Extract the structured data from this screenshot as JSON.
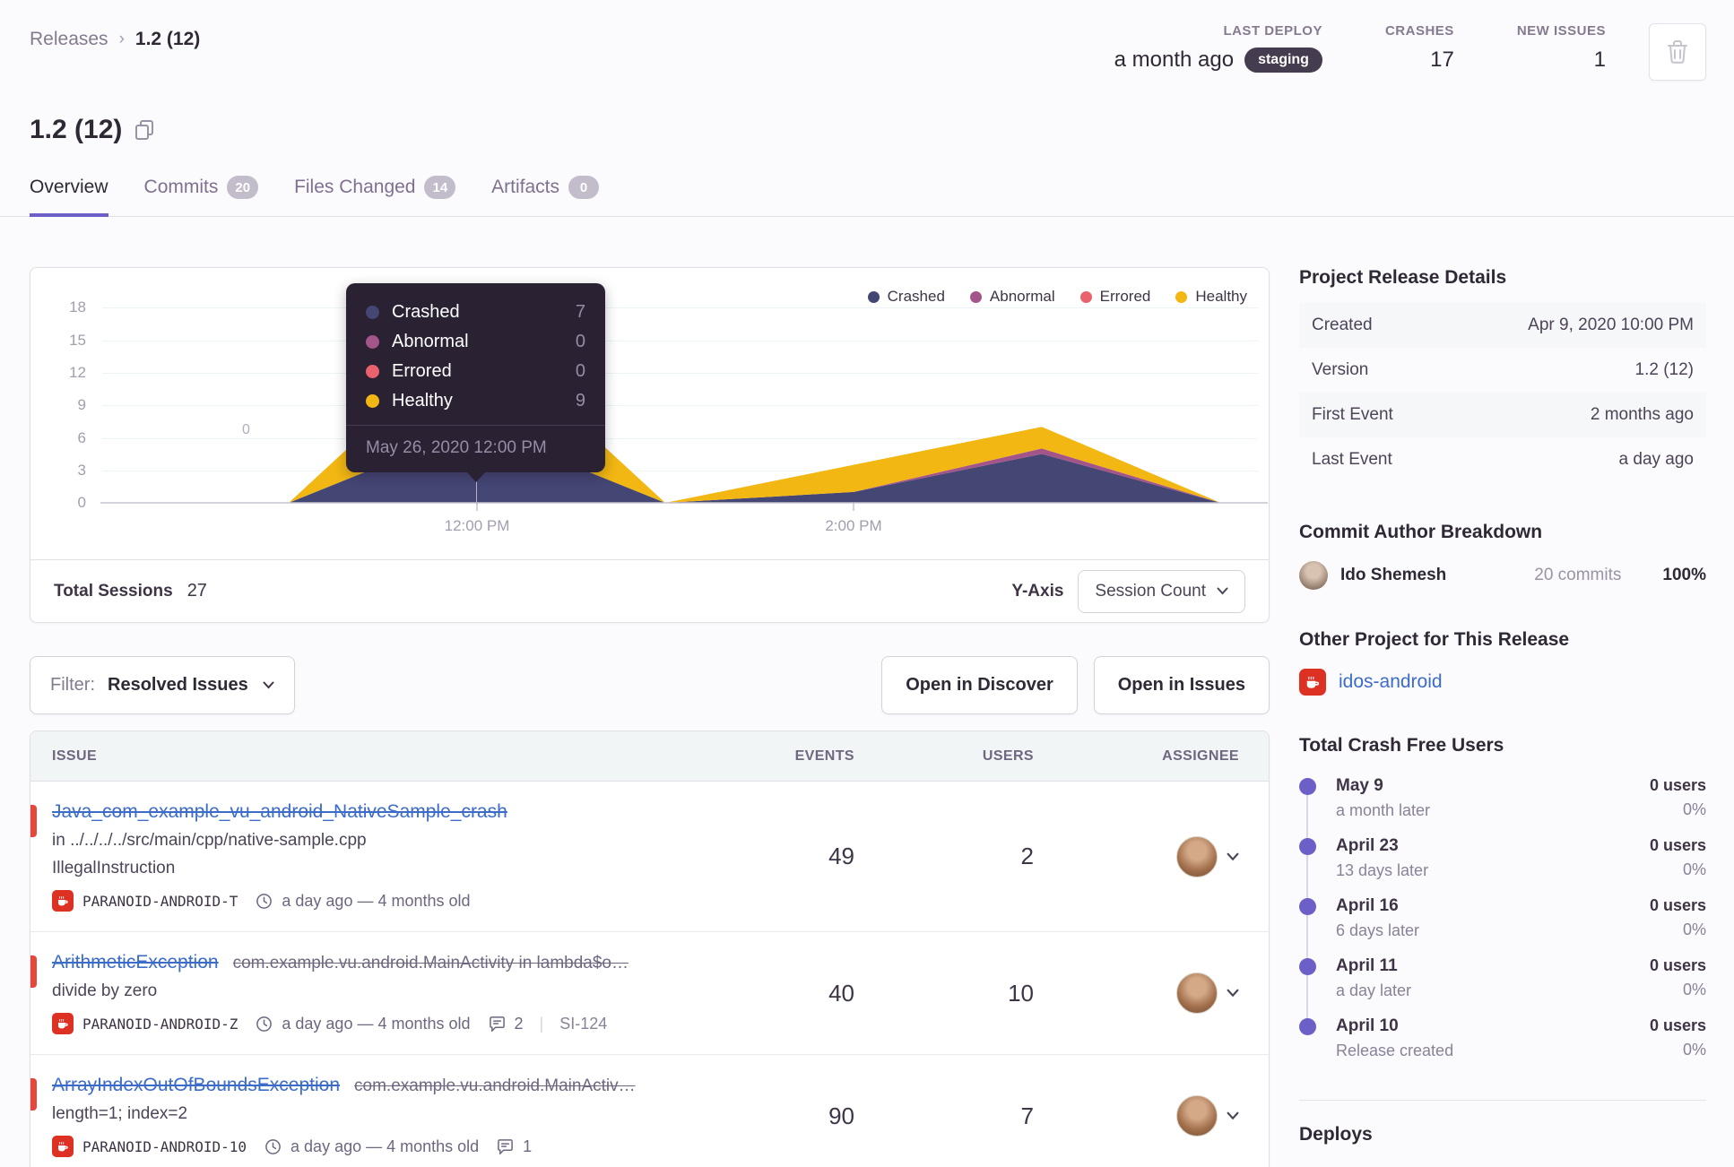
{
  "header": {
    "breadcrumb": {
      "section": "Releases",
      "current": "1.2 (12)"
    },
    "stats": [
      {
        "label": "LAST DEPLOY",
        "value": "a month ago",
        "badge": "staging"
      },
      {
        "label": "CRASHES",
        "value": "17"
      },
      {
        "label": "NEW ISSUES",
        "value": "1"
      }
    ],
    "title": "1.2 (12)"
  },
  "tabs": [
    {
      "label": "Overview"
    },
    {
      "label": "Commits",
      "count": "20"
    },
    {
      "label": "Files Changed",
      "count": "14"
    },
    {
      "label": "Artifacts",
      "count": "0"
    }
  ],
  "chart_data": {
    "type": "area",
    "stacked": true,
    "x_unit": "hours (24h clock, May 26 2020)",
    "x": [
      10,
      11,
      12,
      13,
      14,
      15,
      15.95
    ],
    "x_tick_labels": [
      "12:00 PM",
      "2:00 PM"
    ],
    "x_tick_hours": [
      12,
      14
    ],
    "y_tick_labels": [
      "18",
      "15",
      "12",
      "9",
      "6",
      "3",
      "0"
    ],
    "ylim": [
      0,
      18
    ],
    "series": [
      {
        "name": "Crashed",
        "color": "#444674",
        "values": [
          0,
          0,
          7,
          0,
          1,
          4.5,
          0
        ]
      },
      {
        "name": "Abnormal",
        "color": "#A35488",
        "values": [
          0,
          0,
          0,
          0,
          0,
          0.5,
          0
        ]
      },
      {
        "name": "Errored",
        "color": "#E9626E",
        "values": [
          0,
          0,
          0,
          0,
          0,
          0,
          0
        ]
      },
      {
        "name": "Healthy",
        "color": "#F2B712",
        "values": [
          0,
          0,
          9,
          0,
          2.5,
          2,
          0
        ]
      }
    ],
    "legend_position": "top-right",
    "stray_point_label": "0"
  },
  "tooltip": {
    "rows": [
      {
        "label": "Crashed",
        "value": "7",
        "color": "#444674"
      },
      {
        "label": "Abnormal",
        "value": "0",
        "color": "#A35488"
      },
      {
        "label": "Errored",
        "value": "0",
        "color": "#E9626E"
      },
      {
        "label": "Healthy",
        "value": "9",
        "color": "#F2B712"
      }
    ],
    "date": "May 26, 2020 12:00 PM"
  },
  "chart_footer": {
    "total_sessions_label": "Total Sessions",
    "total_sessions_value": "27",
    "yaxis_label": "Y-Axis",
    "yaxis_value": "Session Count"
  },
  "filter_bar": {
    "filter_label": "Filter:",
    "filter_value": "Resolved Issues",
    "discover_button": "Open in Discover",
    "issues_button": "Open in Issues"
  },
  "issues_table": {
    "columns": {
      "issue": "ISSUE",
      "events": "EVENTS",
      "users": "USERS",
      "assignee": "ASSIGNEE"
    },
    "rows": [
      {
        "title": "Java_com_example_vu_android_NativeSample_crash",
        "culprit": null,
        "line2": "in ../../../../src/main/cpp/native-sample.cpp",
        "line3": "IllegalInstruction",
        "project": "PARANOID-ANDROID-T",
        "age": "a day ago — 4 months old",
        "comments": null,
        "ref": null,
        "events": "49",
        "users": "2"
      },
      {
        "title": "ArithmeticException",
        "culprit": "com.example.vu.android.MainActivity in lambda$o…",
        "line2": "divide by zero",
        "line3": null,
        "project": "PARANOID-ANDROID-Z",
        "age": "a day ago — 4 months old",
        "comments": "2",
        "ref": "SI-124",
        "events": "40",
        "users": "10"
      },
      {
        "title": "ArrayIndexOutOfBoundsException",
        "culprit": "com.example.vu.android.MainActiv…",
        "line2": "length=1; index=2",
        "line3": null,
        "project": "PARANOID-ANDROID-10",
        "age": "a day ago — 4 months old",
        "comments": "1",
        "ref": null,
        "events": "90",
        "users": "7"
      }
    ]
  },
  "sidebar": {
    "details": {
      "heading": "Project Release Details",
      "rows": [
        {
          "label": "Created",
          "value": "Apr 9, 2020 10:00 PM"
        },
        {
          "label": "Version",
          "value": "1.2 (12)"
        },
        {
          "label": "First Event",
          "value": "2 months ago"
        },
        {
          "label": "Last Event",
          "value": "a day ago"
        }
      ]
    },
    "commit_breakdown": {
      "heading": "Commit Author Breakdown",
      "author": {
        "name": "Ido Shemesh",
        "commits": "20 commits",
        "percent": "100%"
      }
    },
    "other_project": {
      "heading": "Other Project for This Release",
      "link": "idos-android"
    },
    "crash_free": {
      "heading": "Total Crash Free Users",
      "items": [
        {
          "date": "May 9",
          "sub": "a month later",
          "users": "0 users",
          "percent": "0%"
        },
        {
          "date": "April 23",
          "sub": "13 days later",
          "users": "0 users",
          "percent": "0%"
        },
        {
          "date": "April 16",
          "sub": "6 days later",
          "users": "0 users",
          "percent": "0%"
        },
        {
          "date": "April 11",
          "sub": "a day later",
          "users": "0 users",
          "percent": "0%"
        },
        {
          "date": "April 10",
          "sub": "Release created",
          "users": "0 users",
          "percent": "0%"
        }
      ]
    },
    "deploys_heading": "Deploys"
  }
}
